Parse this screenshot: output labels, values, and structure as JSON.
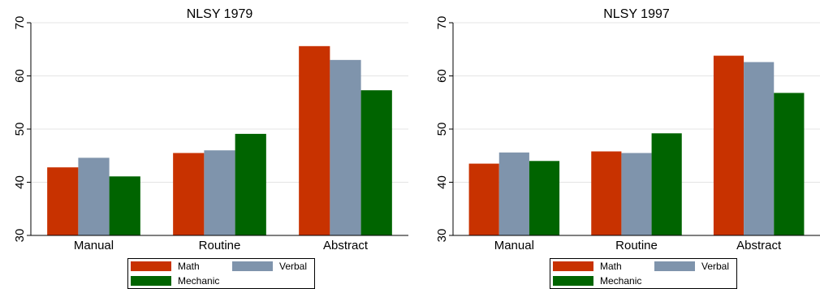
{
  "chart_data": [
    {
      "type": "bar",
      "title": "NLSY 1979",
      "categories": [
        "Manual",
        "Routine",
        "Abstract"
      ],
      "series": [
        {
          "name": "Math",
          "values": [
            42.8,
            45.5,
            65.6
          ]
        },
        {
          "name": "Verbal",
          "values": [
            44.6,
            46.0,
            63.0
          ]
        },
        {
          "name": "Mechanic",
          "values": [
            41.1,
            49.1,
            57.3
          ]
        }
      ],
      "ylim": [
        30,
        70
      ],
      "yticks": [
        30,
        40,
        50,
        60,
        70
      ],
      "grid": true,
      "legend": "bottom"
    },
    {
      "type": "bar",
      "title": "NLSY 1997",
      "categories": [
        "Manual",
        "Routine",
        "Abstract"
      ],
      "series": [
        {
          "name": "Math",
          "values": [
            43.5,
            45.8,
            63.8
          ]
        },
        {
          "name": "Verbal",
          "values": [
            45.6,
            45.5,
            62.6
          ]
        },
        {
          "name": "Mechanic",
          "values": [
            44.0,
            49.2,
            56.8
          ]
        }
      ],
      "ylim": [
        30,
        70
      ],
      "yticks": [
        30,
        40,
        50,
        60,
        70
      ],
      "grid": true,
      "legend": "bottom"
    }
  ],
  "colors": {
    "Math": "#c83200",
    "Verbal": "#7f94ac",
    "Mechanic": "#006400",
    "grid": "#e4e4e4",
    "axis": "#000000"
  }
}
